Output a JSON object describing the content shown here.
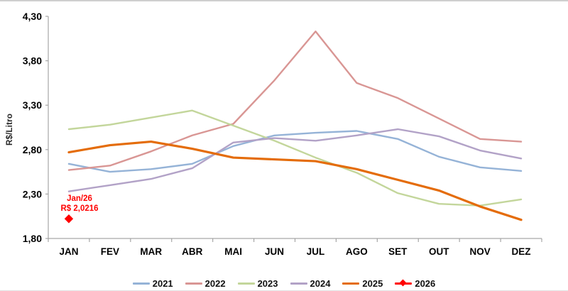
{
  "chart_data": {
    "type": "line",
    "title": "",
    "xlabel": "",
    "ylabel": "R$/Litro",
    "grid": false,
    "legend_position": "bottom",
    "ylim": [
      1.8,
      4.3
    ],
    "ytick_step": 0.5,
    "ytick_labels": [
      "4,30",
      "3,80",
      "3,30",
      "2,80",
      "2,30",
      "1,80"
    ],
    "categories": [
      "JAN",
      "FEV",
      "MAR",
      "ABR",
      "MAI",
      "JUN",
      "JUL",
      "AGO",
      "SET",
      "OUT",
      "NOV",
      "DEZ"
    ],
    "series": [
      {
        "name": "2021",
        "color": "#95B3D7",
        "line_width": 2.4,
        "marker": "none",
        "values": [
          2.64,
          2.55,
          2.58,
          2.64,
          2.84,
          2.96,
          2.99,
          3.01,
          2.92,
          2.72,
          2.6,
          2.56
        ]
      },
      {
        "name": "2022",
        "color": "#D99694",
        "line_width": 2.4,
        "marker": "none",
        "values": [
          2.57,
          2.62,
          2.78,
          2.96,
          3.09,
          3.58,
          4.13,
          3.55,
          3.38,
          3.15,
          2.92,
          2.89
        ]
      },
      {
        "name": "2023",
        "color": "#C3D69B",
        "line_width": 2.4,
        "marker": "none",
        "values": [
          3.03,
          3.08,
          3.16,
          3.24,
          3.07,
          2.9,
          2.71,
          2.54,
          2.31,
          2.19,
          2.17,
          2.24
        ]
      },
      {
        "name": "2024",
        "color": "#B2A2C7",
        "line_width": 2.4,
        "marker": "none",
        "values": [
          2.33,
          2.4,
          2.47,
          2.59,
          2.88,
          2.93,
          2.9,
          2.96,
          3.03,
          2.95,
          2.79,
          2.7
        ]
      },
      {
        "name": "2025",
        "color": "#E46C0A",
        "line_width": 3.2,
        "marker": "none",
        "values": [
          2.77,
          2.85,
          2.89,
          2.81,
          2.71,
          2.69,
          2.67,
          2.58,
          2.46,
          2.34,
          2.16,
          2.01
        ]
      },
      {
        "name": "2026",
        "color": "#FF0000",
        "line_width": 2.0,
        "marker": "diamond",
        "values": [
          2.0216,
          null,
          null,
          null,
          null,
          null,
          null,
          null,
          null,
          null,
          null,
          null
        ]
      }
    ],
    "annotation": {
      "lines": [
        "Jan/26",
        "R$ 2,0216"
      ],
      "color": "#FF0000",
      "month": "JAN",
      "value": 2.0216
    },
    "axis_color": "#a6a6a6"
  }
}
